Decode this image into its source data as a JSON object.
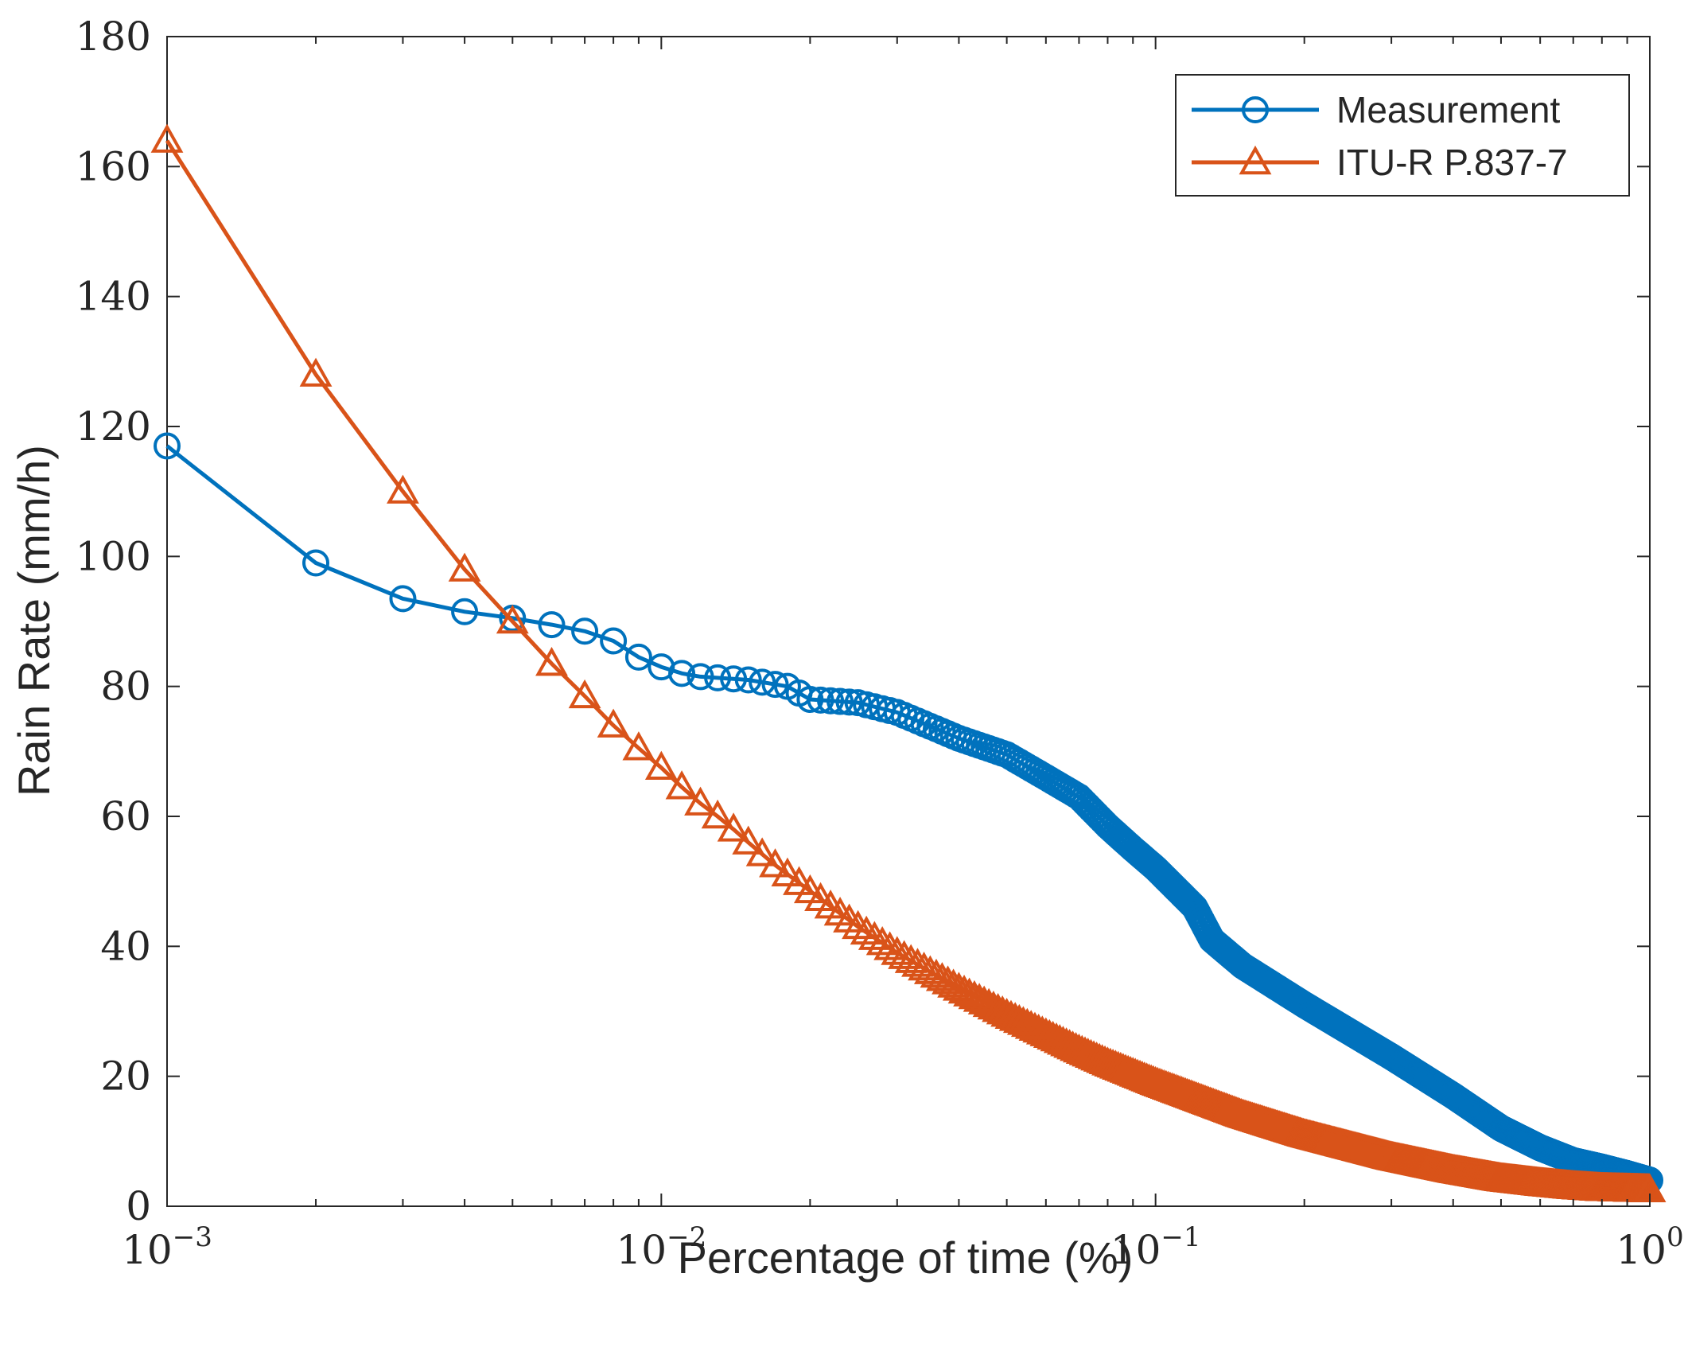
{
  "chart_data": {
    "type": "line",
    "xscale": "log",
    "xlabel": "Percentage of time (%)",
    "ylabel": "Rain Rate (mm/h)",
    "xlim": [
      0.001,
      1
    ],
    "ylim": [
      0,
      180
    ],
    "xticks": [
      {
        "value": 0.001,
        "base": "10",
        "exp": "−3"
      },
      {
        "value": 0.01,
        "base": "10",
        "exp": "−2"
      },
      {
        "value": 0.1,
        "base": "10",
        "exp": "−1"
      },
      {
        "value": 1,
        "base": "10",
        "exp": "0"
      }
    ],
    "yticks": [
      0,
      20,
      40,
      60,
      80,
      100,
      120,
      140,
      160,
      180
    ],
    "legend_position": "top-right",
    "series": [
      {
        "name": "Measurement",
        "color": "#0072BD",
        "marker": "circle",
        "x": [
          0.001,
          0.002,
          0.003,
          0.004,
          0.005,
          0.006,
          0.007,
          0.008,
          0.009,
          0.01,
          0.011,
          0.012,
          0.015,
          0.018,
          0.02,
          0.025,
          0.03,
          0.04,
          0.05,
          0.06,
          0.07,
          0.08,
          0.09,
          0.1,
          0.12,
          0.13,
          0.15,
          0.2,
          0.3,
          0.4,
          0.5,
          0.6,
          0.7,
          0.8,
          0.9,
          1.0
        ],
        "y": [
          117,
          99,
          93.5,
          91.5,
          90.5,
          89.5,
          88.5,
          87,
          84.5,
          83,
          82,
          81.5,
          81,
          80,
          78,
          77.5,
          76,
          72,
          69.5,
          66,
          63,
          58.5,
          55,
          52,
          46,
          41,
          37,
          31,
          23,
          17,
          12,
          9,
          7,
          6,
          5,
          4
        ]
      },
      {
        "name": "ITU-R P.837-7",
        "color": "#D95319",
        "marker": "triangle",
        "x": [
          0.001,
          0.002,
          0.003,
          0.004,
          0.005,
          0.006,
          0.007,
          0.008,
          0.009,
          0.01,
          0.011,
          0.012,
          0.013,
          0.014,
          0.015,
          0.017,
          0.02,
          0.025,
          0.03,
          0.04,
          0.05,
          0.06,
          0.07,
          0.08,
          0.1,
          0.15,
          0.2,
          0.3,
          0.4,
          0.5,
          0.6,
          0.7,
          0.8,
          0.9,
          1.0
        ],
        "y": [
          164,
          128,
          110,
          98,
          90,
          83.5,
          78.5,
          74,
          70.5,
          67.5,
          64.5,
          62,
          60,
          58,
          56,
          52.5,
          48.5,
          43,
          39,
          33.5,
          29.5,
          26.5,
          24,
          22,
          19,
          14,
          11,
          7.5,
          5.5,
          4.2,
          3.5,
          3,
          2.7,
          2.6,
          2.5
        ]
      }
    ]
  }
}
